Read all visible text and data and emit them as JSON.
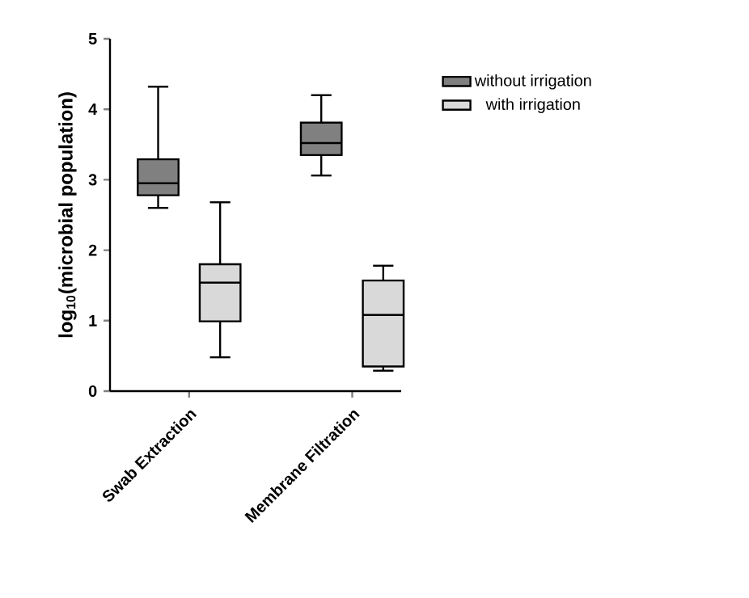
{
  "chart_data": {
    "type": "box",
    "ylabel": "log$_{10}$(microbial population)",
    "categories": [
      "Swab Extraction",
      "Membrane Filtration"
    ],
    "ylim": [
      0,
      5
    ],
    "yticks": [
      0,
      1,
      2,
      3,
      4,
      5
    ],
    "legend": "top right",
    "grid": false,
    "series": [
      {
        "name": "without irrigation",
        "color": "#808080",
        "boxes": [
          {
            "low": 2.6,
            "q1": 2.78,
            "median": 2.95,
            "q3": 3.29,
            "high": 4.32
          },
          {
            "low": 3.06,
            "q1": 3.35,
            "median": 3.52,
            "q3": 3.81,
            "high": 4.2
          }
        ]
      },
      {
        "name": "with irrigation",
        "color": "#d9d9d9",
        "boxes": [
          {
            "low": 0.48,
            "q1": 0.99,
            "median": 1.54,
            "q3": 1.8,
            "high": 2.68
          },
          {
            "low": 0.29,
            "q1": 0.35,
            "median": 1.08,
            "q3": 1.57,
            "high": 1.78
          }
        ]
      }
    ]
  }
}
